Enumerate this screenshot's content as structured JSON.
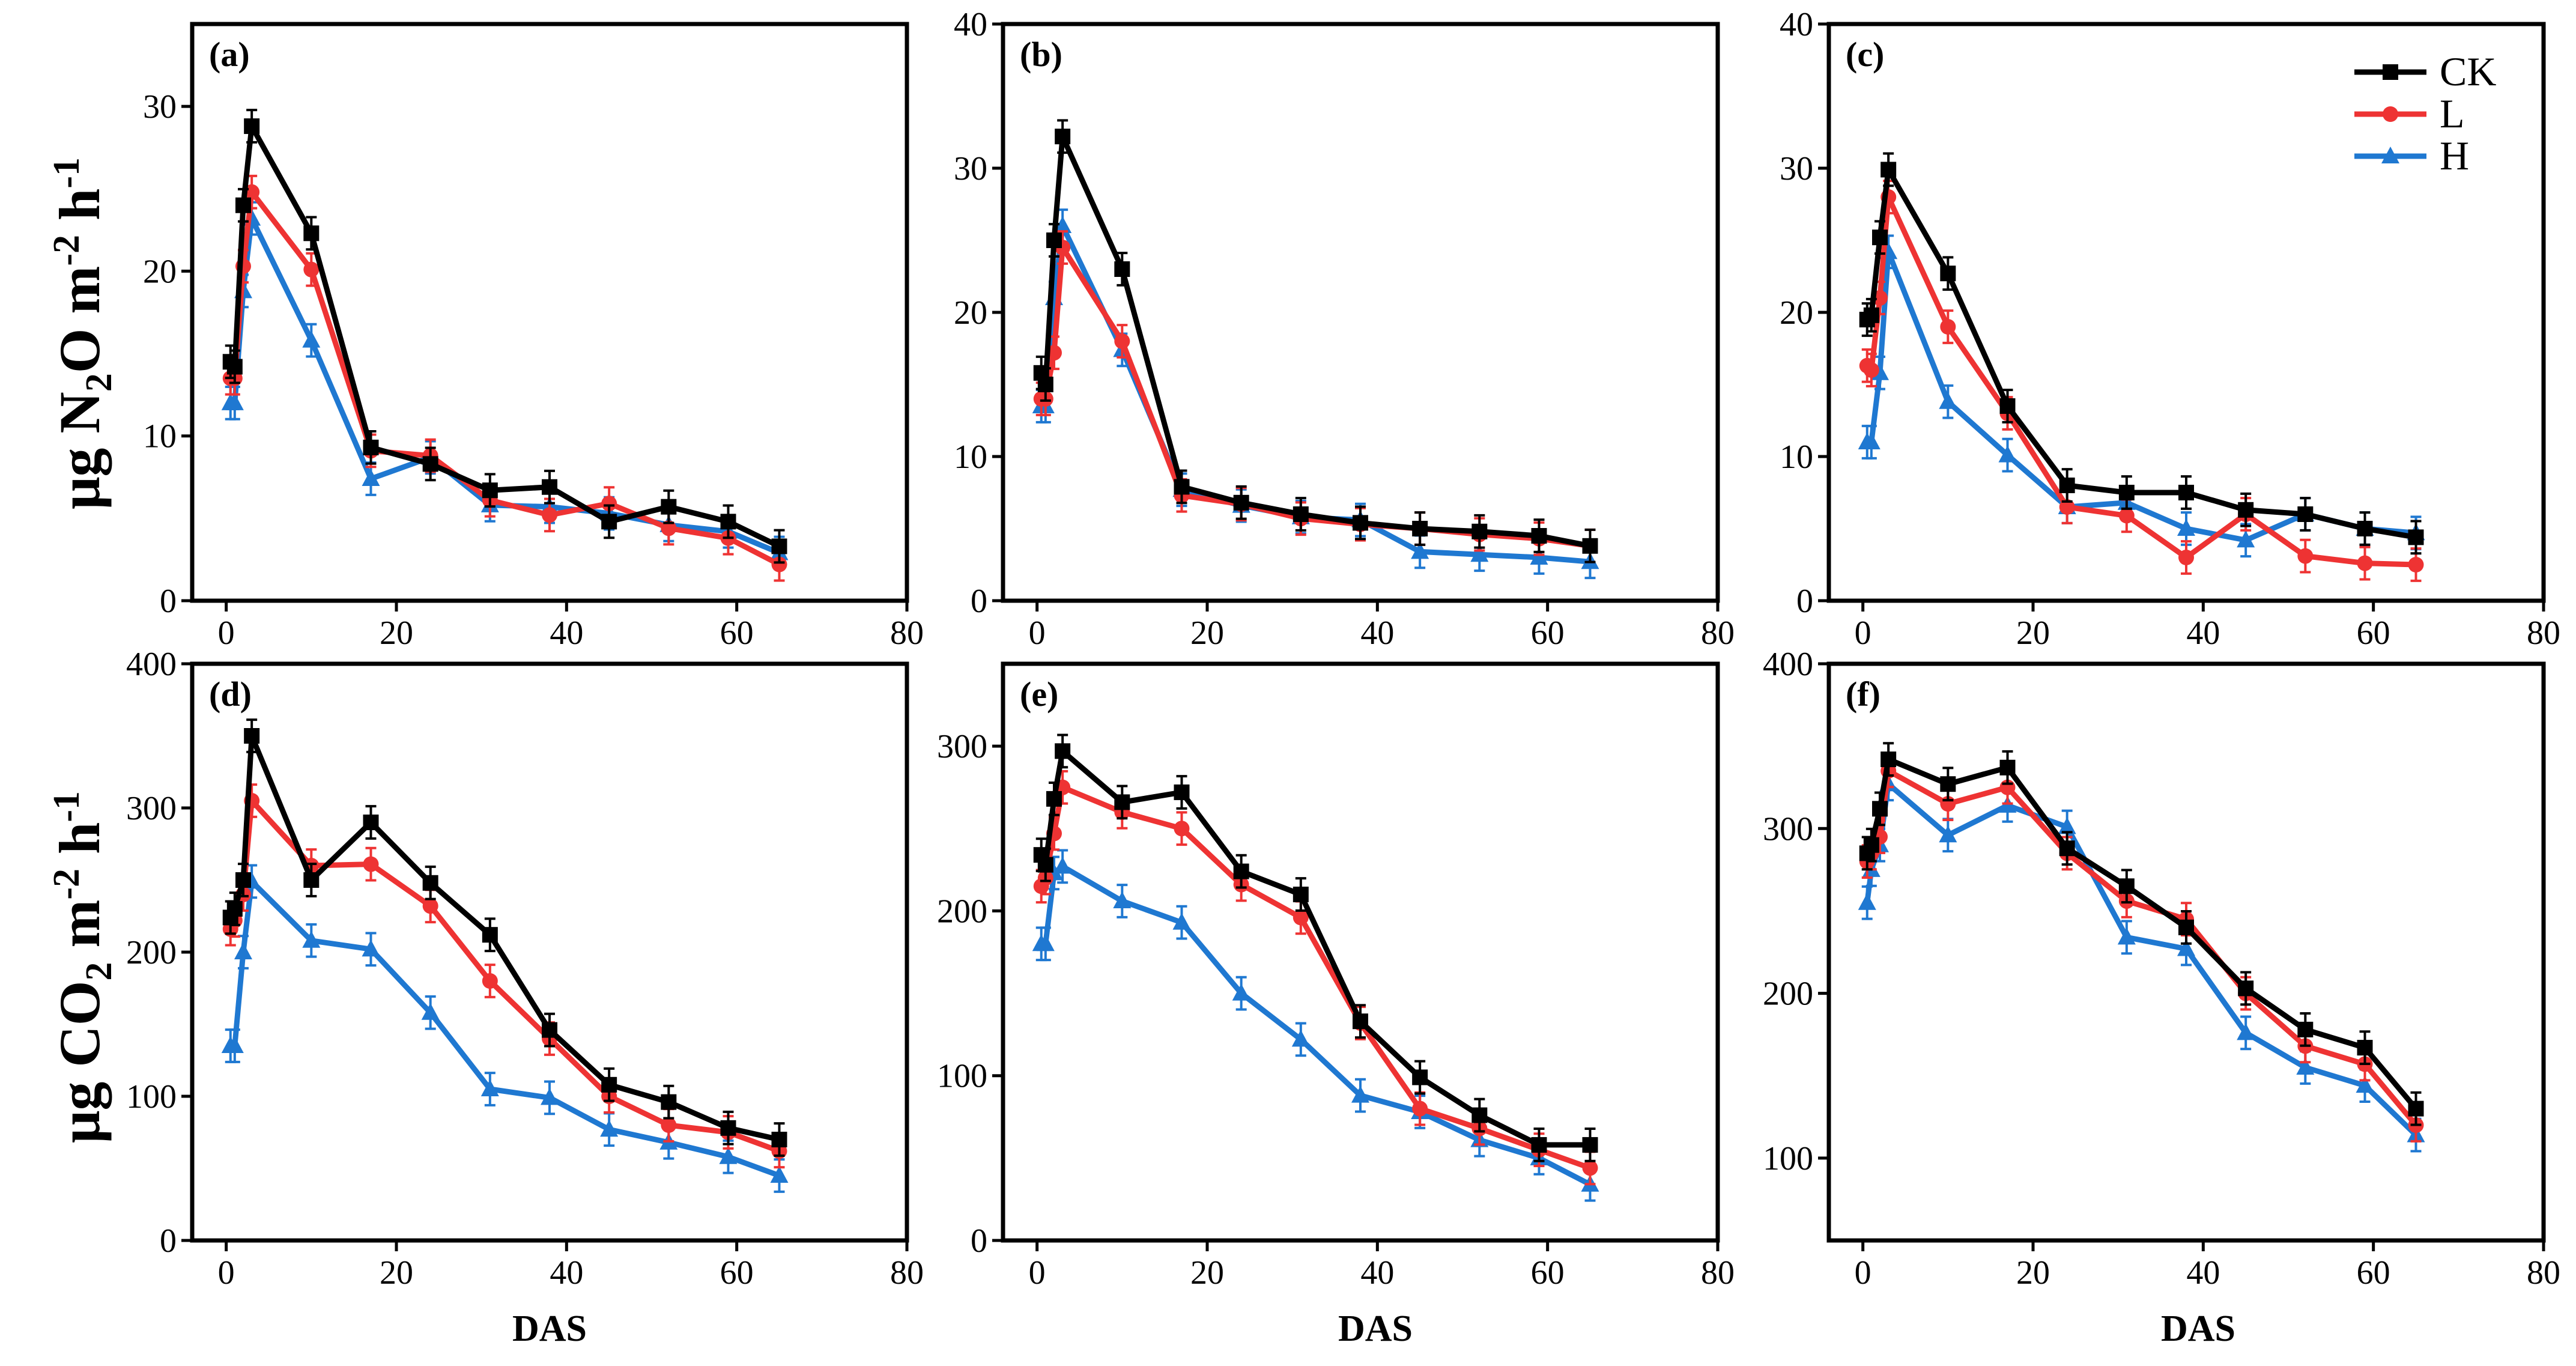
{
  "colors": {
    "CK": "#000000",
    "L": "#ee3333",
    "H": "#1f78d1"
  },
  "legend": [
    {
      "key": "CK",
      "label": "CK",
      "marker": "square"
    },
    {
      "key": "L",
      "label": "L",
      "marker": "circle"
    },
    {
      "key": "H",
      "label": "H",
      "marker": "triangle"
    }
  ],
  "y_labels": {
    "n2o": {
      "prefix": "μg N",
      "sub": "2",
      "mid": "O m",
      "sup1": "-2",
      "end": " h",
      "sup2": "-1"
    },
    "co2": {
      "prefix": "μg CO",
      "sub": "2",
      "mid": " m",
      "sup1": "-2",
      "end": " h",
      "sup2": "-1"
    }
  },
  "x_label": "DAS",
  "chart_data": [
    {
      "panel": "(a)",
      "type": "line",
      "xlim": [
        0,
        80
      ],
      "ylim": [
        0,
        35
      ],
      "xticks": [
        0,
        20,
        40,
        60,
        80
      ],
      "yticks": [
        0,
        10,
        20,
        30
      ],
      "x": [
        0.5,
        1,
        2,
        3,
        10,
        17,
        24,
        31,
        38,
        45,
        52,
        59,
        65
      ],
      "series": [
        {
          "name": "CK",
          "values": [
            14.5,
            14.2,
            24,
            28.8,
            22.3,
            9.3,
            8.3,
            6.7,
            6.9,
            4.8,
            5.7,
            4.8,
            3.3
          ]
        },
        {
          "name": "L",
          "values": [
            13.5,
            13.5,
            20.3,
            24.8,
            20.1,
            9.1,
            8.8,
            6.1,
            5.2,
            5.9,
            4.4,
            3.8,
            2.2
          ]
        },
        {
          "name": "H",
          "values": [
            12.0,
            12.0,
            18.8,
            23.2,
            15.8,
            7.4,
            8.7,
            5.8,
            5.7,
            5.3,
            4.6,
            4.2,
            2.9
          ]
        }
      ]
    },
    {
      "panel": "(b)",
      "type": "line",
      "xlim": [
        0,
        80
      ],
      "ylim": [
        0,
        40
      ],
      "xticks": [
        0,
        20,
        40,
        60,
        80
      ],
      "yticks": [
        0,
        10,
        20,
        30,
        40
      ],
      "x": [
        0.5,
        1,
        2,
        3,
        10,
        17,
        24,
        31,
        38,
        45,
        52,
        59,
        65
      ],
      "series": [
        {
          "name": "CK",
          "values": [
            15.8,
            15.0,
            25.0,
            32.2,
            23.0,
            7.9,
            6.8,
            6.0,
            5.4,
            5.0,
            4.8,
            4.5,
            3.8
          ]
        },
        {
          "name": "L",
          "values": [
            14.0,
            14.0,
            17.2,
            24.5,
            18.0,
            7.3,
            6.7,
            5.7,
            5.3,
            5.0,
            4.6,
            4.3,
            3.8
          ]
        },
        {
          "name": "H",
          "values": [
            13.5,
            13.5,
            21.0,
            26.0,
            17.4,
            7.7,
            6.6,
            5.8,
            5.6,
            3.4,
            3.2,
            3.0,
            2.7
          ]
        }
      ]
    },
    {
      "panel": "(c)",
      "type": "line",
      "xlim": [
        0,
        80
      ],
      "ylim": [
        0,
        40
      ],
      "xticks": [
        0,
        20,
        40,
        60,
        80
      ],
      "yticks": [
        0,
        10,
        20,
        30,
        40
      ],
      "x": [
        0.5,
        1,
        2,
        3,
        10,
        17,
        24,
        31,
        38,
        45,
        52,
        59,
        65
      ],
      "series": [
        {
          "name": "CK",
          "values": [
            19.5,
            19.8,
            25.2,
            29.9,
            22.7,
            13.5,
            8.0,
            7.5,
            7.5,
            6.3,
            6.0,
            5.0,
            4.4
          ]
        },
        {
          "name": "L",
          "values": [
            16.3,
            16.0,
            21.0,
            28.0,
            19.0,
            13.0,
            6.5,
            5.9,
            3.0,
            6.0,
            3.1,
            2.6,
            2.5
          ]
        },
        {
          "name": "H",
          "values": [
            11.0,
            11.0,
            15.8,
            24.2,
            13.8,
            10.1,
            6.5,
            6.8,
            5.0,
            4.2,
            6.0,
            5.0,
            4.7
          ]
        }
      ]
    },
    {
      "panel": "(d)",
      "type": "line",
      "xlim": [
        0,
        80
      ],
      "ylim": [
        0,
        400
      ],
      "xticks": [
        0,
        20,
        40,
        60,
        80
      ],
      "yticks": [
        0,
        100,
        200,
        300,
        400
      ],
      "x": [
        0.5,
        1,
        2,
        3,
        10,
        17,
        24,
        31,
        38,
        45,
        52,
        59,
        65
      ],
      "series": [
        {
          "name": "CK",
          "values": [
            224,
            230,
            250,
            350,
            250,
            290,
            248,
            212,
            146,
            108,
            96,
            78,
            70
          ]
        },
        {
          "name": "L",
          "values": [
            216,
            222,
            240,
            305,
            260,
            261,
            232,
            180,
            140,
            100,
            80,
            75,
            62
          ]
        },
        {
          "name": "H",
          "values": [
            135,
            135,
            200,
            249,
            208,
            202,
            158,
            105,
            99,
            77,
            68,
            58,
            45
          ]
        }
      ]
    },
    {
      "panel": "(e)",
      "type": "line",
      "xlim": [
        0,
        80
      ],
      "ylim": [
        0,
        350
      ],
      "xticks": [
        0,
        20,
        40,
        60,
        80
      ],
      "yticks": [
        0,
        100,
        200,
        300
      ],
      "x": [
        0.5,
        1,
        2,
        3,
        10,
        17,
        24,
        31,
        38,
        45,
        52,
        59,
        65
      ],
      "series": [
        {
          "name": "CK",
          "values": [
            234,
            228,
            268,
            297,
            266,
            272,
            224,
            210,
            133,
            99,
            76,
            58,
            58
          ]
        },
        {
          "name": "L",
          "values": [
            215,
            220,
            247,
            275,
            260,
            250,
            216,
            196,
            132,
            80,
            68,
            55,
            44
          ]
        },
        {
          "name": "H",
          "values": [
            180,
            180,
            223,
            227,
            206,
            193,
            150,
            122,
            88,
            78,
            61,
            50,
            34
          ]
        }
      ]
    },
    {
      "panel": "(f)",
      "type": "line",
      "xlim": [
        0,
        80
      ],
      "ylim": [
        50,
        400
      ],
      "xticks": [
        0,
        20,
        40,
        60,
        80
      ],
      "yticks": [
        100,
        200,
        300,
        400
      ],
      "x": [
        0.5,
        1,
        2,
        3,
        10,
        17,
        24,
        31,
        38,
        45,
        52,
        59,
        65
      ],
      "series": [
        {
          "name": "CK",
          "values": [
            285,
            290,
            312,
            342,
            327,
            337,
            288,
            265,
            240,
            203,
            178,
            167,
            130
          ]
        },
        {
          "name": "L",
          "values": [
            280,
            285,
            295,
            335,
            315,
            325,
            285,
            256,
            245,
            200,
            168,
            157,
            120
          ]
        },
        {
          "name": "H",
          "values": [
            255,
            275,
            290,
            327,
            296,
            314,
            301,
            234,
            227,
            176,
            155,
            144,
            114
          ]
        }
      ]
    }
  ]
}
